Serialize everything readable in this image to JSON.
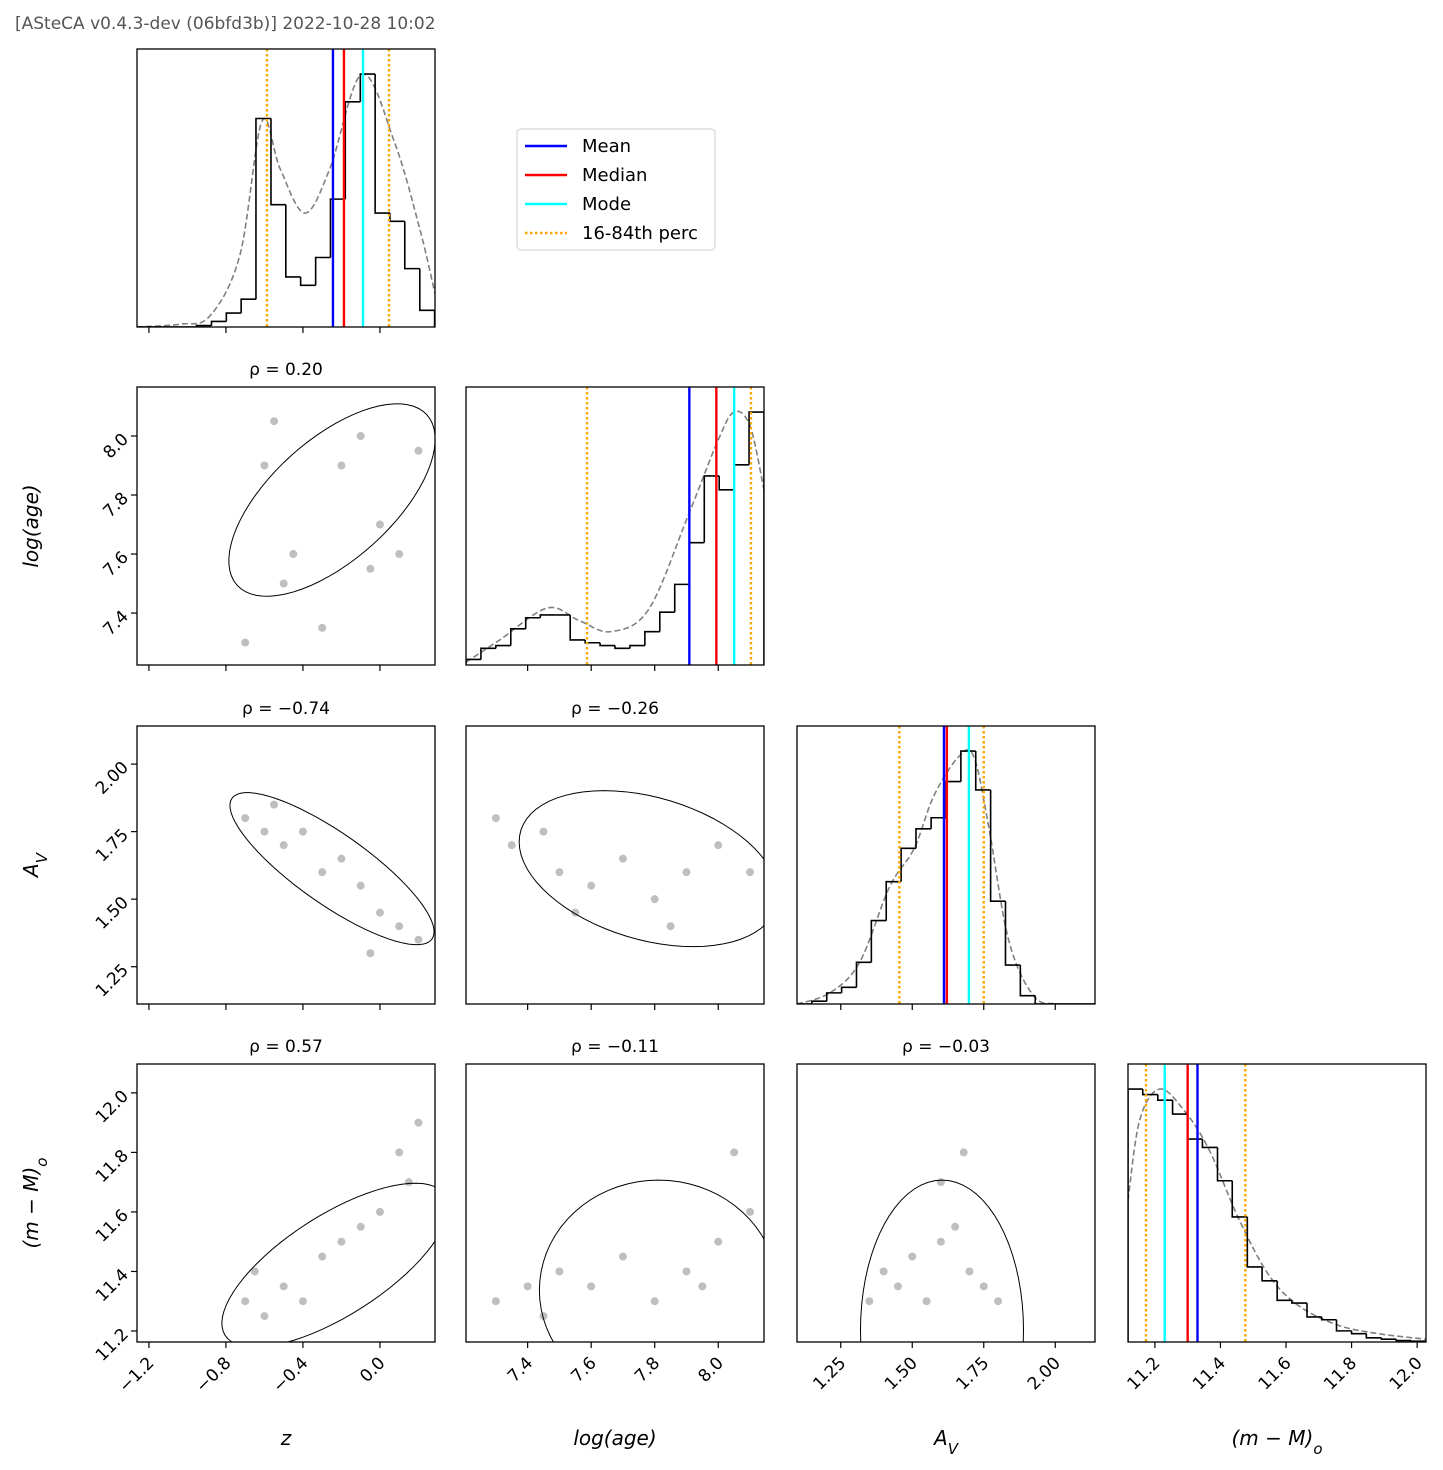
{
  "header": "[ASteCA v0.4.3-dev (06bfd3b)] 2022-10-28 10:02",
  "chart_data": {
    "type": "corner",
    "ylim": [
      0,
      1
    ],
    "kde_color": "#808080",
    "hist_color": "#000000",
    "point_color": "#000000",
    "legend": [
      {
        "name": "Mean",
        "color": "#0000ff",
        "style": "solid"
      },
      {
        "name": "Median",
        "color": "#ff0000",
        "style": "solid"
      },
      {
        "name": "Mode",
        "color": "#00ffff",
        "style": "solid"
      },
      {
        "name": "16-84th perc",
        "color": "#ffa500",
        "style": "dotted"
      }
    ],
    "params": [
      {
        "label": {
          "text": "z"
        },
        "xlim": [
          -1.262,
          0.286
        ],
        "ticks": [
          {
            "value": -1.2,
            "label": "−1.2"
          },
          {
            "value": -0.8,
            "label": "−0.8"
          },
          {
            "value": -0.4,
            "label": "−0.4"
          },
          {
            "value": 0,
            "label": "0.0"
          }
        ],
        "hist": {
          "bins": [
            -1.262,
            -1.185,
            -1.107,
            -1.03,
            -0.953,
            -0.875,
            -0.798,
            -0.721,
            -0.644,
            -0.566,
            -0.489,
            -0.412,
            -0.334,
            -0.257,
            -0.18,
            -0.102,
            -0.025,
            0.052,
            0.129,
            0.207,
            0.284
          ],
          "counts": [
            0,
            0,
            0,
            0,
            0.005,
            0.02,
            0.05,
            0.1,
            0.75,
            0.44,
            0.18,
            0.15,
            0.25,
            0.46,
            0.81,
            0.91,
            0.41,
            0.38,
            0.21,
            0.06
          ]
        },
        "kde": {
          "x": [
            -1.262,
            -1.039,
            -0.883,
            -0.727,
            -0.613,
            -0.519,
            -0.39,
            -0.26,
            -0.093,
            0.078,
            0.208,
            0.286
          ],
          "y": [
            0,
            0.01,
            0.04,
            0.26,
            0.74,
            0.57,
            0.41,
            0.57,
            0.91,
            0.66,
            0.35,
            0.12
          ]
        },
        "lines": [
          [
            -0.244
          ],
          [
            -0.187
          ],
          [
            -0.088
          ],
          [
            -0.587,
            0.047
          ]
        ],
        "pairs": []
      },
      {
        "label": {
          "text": "log(age)"
        },
        "xlim": [
          7.206,
          8.144
        ],
        "ylim": [
          7.224,
          8.166
        ],
        "ticks": [
          7.4,
          7.6,
          7.8,
          {
            "value": 8,
            "label": "8.0"
          }
        ],
        "hist": {
          "bins": [
            7.206,
            7.253,
            7.3,
            7.347,
            7.394,
            7.44,
            7.487,
            7.534,
            7.581,
            7.628,
            7.675,
            7.722,
            7.769,
            7.816,
            7.863,
            7.91,
            7.956,
            8.003,
            8.05,
            8.097,
            8.144
          ],
          "counts": [
            0.02,
            0.06,
            0.07,
            0.13,
            0.17,
            0.18,
            0.18,
            0.09,
            0.08,
            0.07,
            0.06,
            0.07,
            0.12,
            0.19,
            0.29,
            0.44,
            0.68,
            0.63,
            0.72,
            0.91
          ]
        },
        "kde": {
          "x": [
            7.206,
            7.312,
            7.462,
            7.562,
            7.662,
            7.781,
            7.906,
            8.0,
            8.05,
            8.1,
            8.144
          ],
          "y": [
            0.01,
            0.09,
            0.205,
            0.16,
            0.12,
            0.2,
            0.54,
            0.81,
            0.91,
            0.86,
            0.63
          ]
        },
        "lines": [
          [
            7.909
          ],
          [
            7.994
          ],
          [
            8.05
          ],
          [
            7.587,
            8.103
          ]
        ],
        "pairs": [
          {
            "title": "ρ = 0.20",
            "ellipse": {
              "center": [
                -0.249,
                7.783
              ],
              "axis1": [
                0.245,
                8.071
              ],
              "axis2": [
                -0.457,
                7.936
              ]
            },
            "points": {
              "x": [
                -0.6,
                -0.55,
                -0.5,
                -0.3,
                -0.2,
                -0.1,
                0.0,
                0.1,
                0.2,
                -0.7,
                -0.45,
                -0.05
              ],
              "y": [
                7.9,
                8.05,
                7.5,
                7.35,
                7.9,
                8.0,
                7.7,
                7.6,
                7.95,
                7.3,
                7.6,
                7.55
              ]
            }
          }
        ]
      },
      {
        "label": {
          "text": "A",
          "sub": "V"
        },
        "xlim": [
          1.097,
          2.139
        ],
        "ylim": [
          1.112,
          2.141
        ],
        "ticks": [
          1.25,
          {
            "value": 1.5,
            "label": "1.50"
          },
          1.75,
          {
            "value": 2,
            "label": "2.00"
          }
        ],
        "hist": {
          "bins": [
            1.097,
            1.149,
            1.201,
            1.253,
            1.305,
            1.357,
            1.409,
            1.461,
            1.513,
            1.566,
            1.618,
            1.67,
            1.722,
            1.774,
            1.826,
            1.878,
            1.93,
            1.982,
            2.034,
            2.087,
            2.139
          ],
          "counts": [
            0,
            0.01,
            0.04,
            0.06,
            0.15,
            0.3,
            0.44,
            0.56,
            0.63,
            0.67,
            0.8,
            0.91,
            0.77,
            0.37,
            0.14,
            0.03,
            0,
            0,
            0,
            0
          ]
        },
        "kde": {
          "x": [
            1.097,
            1.212,
            1.316,
            1.42,
            1.507,
            1.576,
            1.663,
            1.715,
            1.767,
            1.837,
            1.924,
            2.01,
            2.139
          ],
          "y": [
            0,
            0.04,
            0.15,
            0.42,
            0.56,
            0.75,
            0.89,
            0.89,
            0.64,
            0.23,
            0.03,
            0,
            0
          ]
        },
        "lines": [
          [
            1.611
          ],
          [
            1.621
          ],
          [
            1.698
          ],
          [
            1.455,
            1.75
          ]
        ],
        "pairs": [
          {
            "title": "ρ = −0.74",
            "ellipse": {
              "center": [
                -0.249,
                1.613
              ],
              "axis1": [
                0.271,
                1.353
              ],
              "axis2": [
                -0.145,
                1.721
              ]
            },
            "points": {
              "x": [
                -0.7,
                -0.6,
                -0.5,
                -0.4,
                -0.3,
                -0.2,
                -0.1,
                0.0,
                0.1,
                0.2,
                -0.55,
                -0.05
              ],
              "y": [
                1.8,
                1.75,
                1.7,
                1.75,
                1.6,
                1.65,
                1.55,
                1.45,
                1.4,
                1.35,
                1.85,
                1.3
              ]
            }
          },
          {
            "title": "ρ = −0.26",
            "ellipse": {
              "center": [
                7.781,
                1.613
              ],
              "axis1": [
                8.187,
                1.539
              ],
              "axis2": [
                7.744,
                1.892
              ]
            },
            "points": {
              "x": [
                7.3,
                7.35,
                7.45,
                7.5,
                7.6,
                7.7,
                7.8,
                7.9,
                8.0,
                8.1,
                7.55,
                7.85
              ],
              "y": [
                1.8,
                1.7,
                1.75,
                1.6,
                1.55,
                1.65,
                1.5,
                1.6,
                1.7,
                1.6,
                1.45,
                1.4
              ]
            }
          }
        ]
      },
      {
        "label": {
          "text": "(m − M)",
          "sub": "o"
        },
        "xlim": [
          11.118,
          12.027
        ],
        "ylim": [
          11.163,
          12.097
        ],
        "ticks": [
          11.2,
          11.4,
          11.6,
          11.8,
          {
            "value": 12,
            "label": "12.0"
          }
        ],
        "hist": {
          "bins": [
            11.118,
            11.163,
            11.209,
            11.254,
            11.3,
            11.345,
            11.391,
            11.436,
            11.482,
            11.527,
            11.573,
            11.618,
            11.664,
            11.709,
            11.754,
            11.8,
            11.845,
            11.891,
            11.936,
            11.982,
            12.027
          ],
          "counts": [
            0.91,
            0.89,
            0.87,
            0.82,
            0.73,
            0.7,
            0.58,
            0.45,
            0.27,
            0.22,
            0.15,
            0.14,
            0.09,
            0.08,
            0.04,
            0.03,
            0.015,
            0.01,
            0.005,
            0.003
          ]
        },
        "kde": {
          "x": [
            11.118,
            11.154,
            11.215,
            11.291,
            11.366,
            11.457,
            11.548,
            11.639,
            11.76,
            11.882,
            12.027
          ],
          "y": [
            0.51,
            0.8,
            0.91,
            0.83,
            0.69,
            0.44,
            0.24,
            0.13,
            0.06,
            0.03,
            0.01
          ]
        },
        "lines": [
          [
            11.33
          ],
          [
            11.3
          ],
          [
            11.23
          ],
          [
            11.173,
            11.476
          ]
        ],
        "pairs": [
          {
            "title": "ρ = 0.57",
            "ellipse": {
              "center": [
                -0.233,
                11.421
              ],
              "axis1": [
                0.338,
                11.657
              ],
              "axis2": [
                -0.374,
                11.563
              ]
            },
            "points": {
              "x": [
                -0.7,
                -0.6,
                -0.5,
                -0.4,
                -0.3,
                -0.2,
                -0.1,
                0.0,
                0.1,
                0.2,
                -0.65,
                0.15
              ],
              "y": [
                11.3,
                11.25,
                11.35,
                11.3,
                11.45,
                11.5,
                11.55,
                11.6,
                11.8,
                11.9,
                11.4,
                11.7
              ]
            }
          },
          {
            "title": "ρ = −0.11",
            "ellipse": {
              "center": [
                7.812,
                11.337
              ],
              "axis1": [
                8.187,
                11.337
              ],
              "axis2": [
                7.812,
                11.707
              ]
            },
            "points": {
              "x": [
                7.3,
                7.4,
                7.5,
                7.6,
                7.7,
                7.8,
                7.9,
                8.0,
                8.1,
                7.45,
                7.95,
                8.05
              ],
              "y": [
                11.3,
                11.35,
                11.4,
                11.35,
                11.45,
                11.3,
                11.4,
                11.5,
                11.6,
                11.25,
                11.35,
                11.8
              ]
            }
          },
          {
            "title": "ρ = −0.03",
            "ellipse": {
              "center": [
                1.604,
                11.203
              ],
              "axis1": [
                1.889,
                11.203
              ],
              "axis2": [
                1.604,
                11.707
              ]
            },
            "points": {
              "x": [
                1.35,
                1.4,
                1.45,
                1.5,
                1.55,
                1.6,
                1.65,
                1.7,
                1.75,
                1.8,
                1.6,
                1.68
              ],
              "y": [
                11.3,
                11.4,
                11.35,
                11.45,
                11.3,
                11.5,
                11.55,
                11.4,
                11.35,
                11.3,
                11.7,
                11.8
              ]
            }
          }
        ]
      }
    ]
  }
}
